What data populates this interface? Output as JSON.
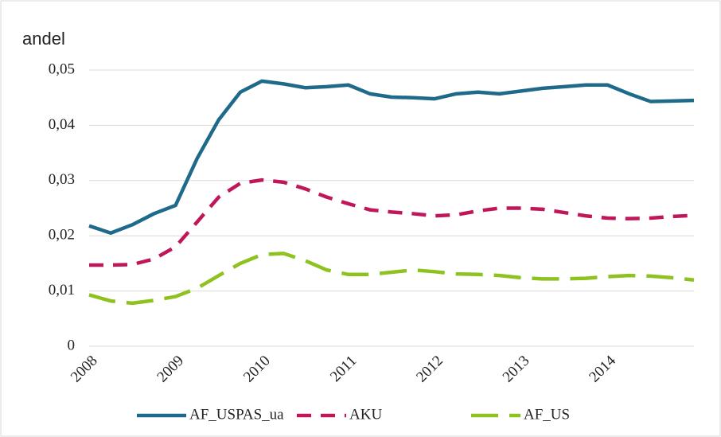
{
  "chart_data": {
    "type": "line",
    "y_label": "andel",
    "x": [
      2008,
      2008.25,
      2008.5,
      2008.75,
      2009,
      2009.25,
      2009.5,
      2009.75,
      2010,
      2010.25,
      2010.5,
      2010.75,
      2011,
      2011.25,
      2011.5,
      2011.75,
      2012,
      2012.25,
      2012.5,
      2012.75,
      2013,
      2013.25,
      2013.5,
      2013.75,
      2014,
      2014.25,
      2014.5,
      2014.75,
      2015
    ],
    "xlim": [
      2008,
      2015
    ],
    "xticks": [
      2008,
      2009,
      2010,
      2011,
      2012,
      2013,
      2014
    ],
    "ylim": [
      0,
      0.05
    ],
    "yticks": [
      0,
      {
        "value": 0.01,
        "label": "0,01"
      },
      {
        "value": 0.02,
        "label": "0,02"
      },
      {
        "value": 0.03,
        "label": "0,03"
      },
      {
        "value": 0.04,
        "label": "0,04"
      },
      {
        "value": 0.05,
        "label": "0,05"
      }
    ],
    "grid": true,
    "legend": "bottom",
    "series": [
      {
        "name": "AF_USPAS_ua",
        "color": "#1f6a8a",
        "dash": "solid",
        "values": [
          0.0218,
          0.0205,
          0.022,
          0.024,
          0.0255,
          0.034,
          0.041,
          0.046,
          0.048,
          0.0475,
          0.0468,
          0.047,
          0.0473,
          0.0457,
          0.0451,
          0.045,
          0.0448,
          0.0457,
          0.046,
          0.0457,
          0.0462,
          0.0467,
          0.047,
          0.0473,
          0.0473,
          0.0457,
          0.0443,
          0.0444,
          0.0445
        ]
      },
      {
        "name": "AKU",
        "color": "#c0175a",
        "dash": "dash",
        "values": [
          0.0147,
          0.0147,
          0.0148,
          0.0158,
          0.018,
          0.0225,
          0.027,
          0.0295,
          0.0301,
          0.0297,
          0.0285,
          0.027,
          0.0258,
          0.0247,
          0.0243,
          0.024,
          0.0236,
          0.0238,
          0.0245,
          0.025,
          0.025,
          0.0248,
          0.0242,
          0.0236,
          0.0232,
          0.0231,
          0.0232,
          0.0235,
          0.0237
        ]
      },
      {
        "name": "AF_US",
        "color": "#8dc21f",
        "dash": "longdash",
        "values": [
          0.0093,
          0.0082,
          0.0078,
          0.0083,
          0.009,
          0.0105,
          0.0128,
          0.015,
          0.0166,
          0.0168,
          0.0155,
          0.0138,
          0.013,
          0.013,
          0.0134,
          0.0138,
          0.0135,
          0.0131,
          0.013,
          0.0128,
          0.0124,
          0.0122,
          0.0122,
          0.0123,
          0.0126,
          0.0128,
          0.0127,
          0.0124,
          0.012
        ]
      }
    ]
  }
}
